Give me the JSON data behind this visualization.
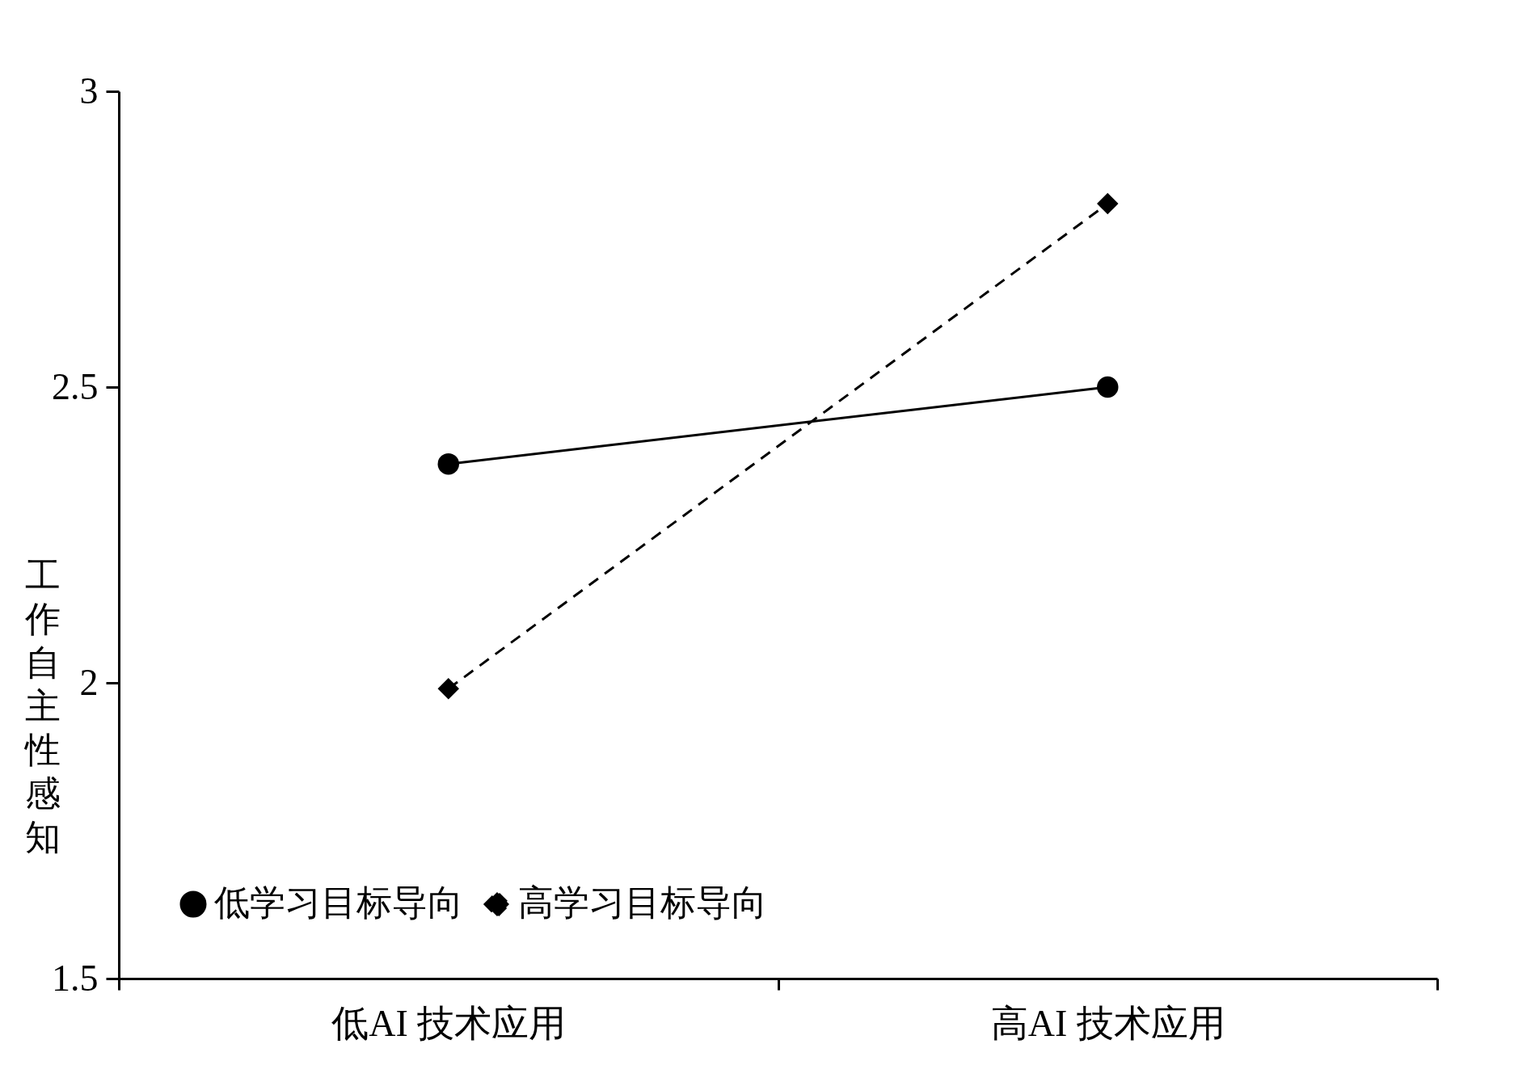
{
  "chart_data": {
    "type": "line",
    "ylabel": "工作自主性感知",
    "categories": [
      "低AI 技术应用",
      "高AI 技术应用"
    ],
    "series": [
      {
        "name": "低学习目标导向",
        "color": "#000000",
        "values": [
          2.37,
          2.5
        ],
        "marker": "circle",
        "line_style": "solid"
      },
      {
        "name": "高学习目标导向",
        "color": "#000000",
        "values": [
          1.99,
          2.81
        ],
        "marker": "diamond",
        "line_style": "dashed"
      }
    ],
    "ylim": [
      1.5,
      3
    ],
    "yticks": [
      1.5,
      2,
      2.5,
      3
    ],
    "grid": false,
    "legend": "bottom"
  }
}
